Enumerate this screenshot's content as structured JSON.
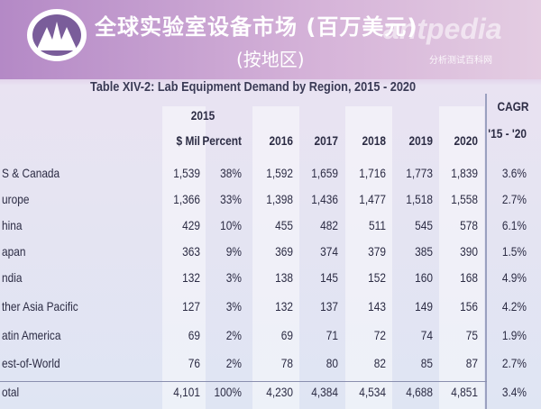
{
  "header": {
    "title": "全球实验室设备市场 (百万美元)",
    "subtitle": "(按地区)"
  },
  "watermark": {
    "brand": "antpedia",
    "tagline": "分析测试百科网"
  },
  "table": {
    "caption": "Table XIV-2: Lab Equipment Demand by Region, 2015 - 2020",
    "group_header": {
      "year": "2015",
      "cagr": "CAGR"
    },
    "columns": [
      "$ Mil",
      "Percent",
      "2016",
      "2017",
      "2018",
      "2019",
      "2020",
      "'15 - '20"
    ],
    "rows": [
      [
        "S & Canada",
        "1,539",
        "38%",
        "1,592",
        "1,659",
        "1,716",
        "1,773",
        "1,839",
        "3.6%"
      ],
      [
        "urope",
        "1,366",
        "33%",
        "1,398",
        "1,436",
        "1,477",
        "1,518",
        "1,558",
        "2.7%"
      ],
      [
        "hina",
        "429",
        "10%",
        "455",
        "482",
        "511",
        "545",
        "578",
        "6.1%"
      ],
      [
        "apan",
        "363",
        "9%",
        "369",
        "374",
        "379",
        "385",
        "390",
        "1.5%"
      ],
      [
        "ndia",
        "132",
        "3%",
        "138",
        "145",
        "152",
        "160",
        "168",
        "4.9%"
      ],
      [
        "ther Asia Pacific",
        "127",
        "3%",
        "132",
        "137",
        "143",
        "149",
        "156",
        "4.2%"
      ],
      [
        "atin America",
        "69",
        "2%",
        "69",
        "71",
        "72",
        "74",
        "75",
        "1.9%"
      ],
      [
        "est-of-World",
        "76",
        "2%",
        "78",
        "80",
        "82",
        "85",
        "87",
        "2.7%"
      ],
      [
        "otal",
        "4,101",
        "100%",
        "4,230",
        "4,384",
        "4,534",
        "4,688",
        "4,851",
        "3.4%"
      ]
    ]
  }
}
